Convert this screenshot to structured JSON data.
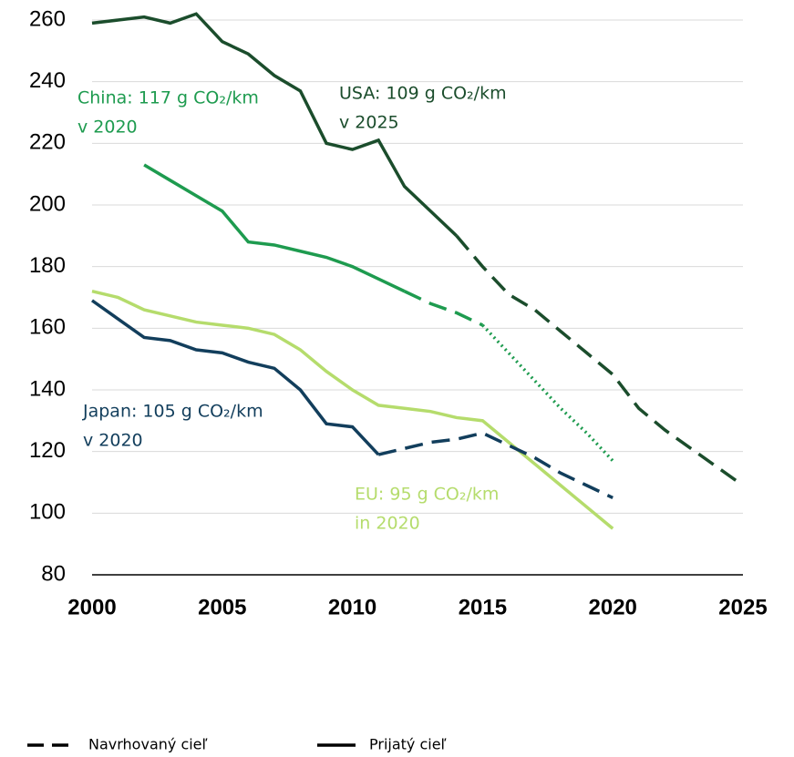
{
  "chart_data": {
    "type": "line",
    "x": [
      2000,
      2001,
      2002,
      2003,
      2004,
      2005,
      2006,
      2007,
      2008,
      2009,
      2010,
      2011,
      2012,
      2013,
      2014,
      2015,
      2016,
      2017,
      2018,
      2019,
      2020,
      2021,
      2022,
      2023,
      2024,
      2025
    ],
    "xlim": [
      2000,
      2025
    ],
    "xticks": [
      2000,
      2005,
      2010,
      2015,
      2020,
      2025
    ],
    "ylim": [
      80,
      260
    ],
    "yticks": [
      80,
      100,
      120,
      140,
      160,
      180,
      200,
      220,
      240,
      260
    ],
    "grid": true,
    "series": [
      {
        "color": "#1b4d2c",
        "line_style": "solid",
        "values": [
          259,
          260,
          261,
          259,
          262,
          253,
          249,
          242,
          237,
          220,
          218,
          221,
          206,
          198,
          190,
          null,
          null,
          null,
          null,
          null,
          null,
          null,
          null,
          null,
          null,
          null
        ]
      },
      {
        "color": "#1b4d2c",
        "line_style": "dashed",
        "values": [
          null,
          null,
          null,
          null,
          null,
          null,
          null,
          null,
          null,
          null,
          null,
          null,
          null,
          null,
          190,
          180,
          171,
          166,
          159,
          152,
          145,
          134,
          127,
          121,
          115,
          109
        ]
      },
      {
        "color": "#1e9b4f",
        "line_style": "solid",
        "values": [
          null,
          null,
          213,
          208,
          203,
          198,
          188,
          187,
          185,
          183,
          180,
          176,
          172,
          null,
          null,
          null,
          null,
          null,
          null,
          null,
          null,
          null,
          null,
          null,
          null,
          null
        ]
      },
      {
        "color": "#1e9b4f",
        "line_style": "dashed",
        "values": [
          null,
          null,
          null,
          null,
          null,
          null,
          null,
          null,
          null,
          null,
          null,
          null,
          172,
          168,
          165,
          161,
          null,
          null,
          null,
          null,
          null,
          null,
          null,
          null,
          null,
          null
        ]
      },
      {
        "color": "#1e9b4f",
        "line_style": "dotted",
        "values": [
          null,
          null,
          null,
          null,
          null,
          null,
          null,
          null,
          null,
          null,
          null,
          null,
          null,
          null,
          null,
          161,
          152,
          143,
          134,
          126,
          117,
          null,
          null,
          null,
          null,
          null
        ]
      },
      {
        "color": "#b5dc6c",
        "line_style": "solid",
        "values": [
          172,
          170,
          166,
          164,
          162,
          161,
          160,
          158,
          153,
          146,
          140,
          135,
          134,
          133,
          131,
          130,
          123,
          116,
          109,
          102,
          95,
          null,
          null,
          null,
          null,
          null
        ]
      },
      {
        "color": "#123e5c",
        "line_style": "solid",
        "values": [
          169,
          163,
          157,
          156,
          153,
          152,
          149,
          147,
          140,
          129,
          128,
          119,
          null,
          null,
          null,
          null,
          null,
          null,
          null,
          null,
          null,
          null,
          null,
          null,
          null,
          null
        ]
      },
      {
        "color": "#123e5c",
        "line_style": "dashed",
        "values": [
          null,
          null,
          null,
          null,
          null,
          null,
          null,
          null,
          null,
          null,
          null,
          119,
          121,
          123,
          124,
          126,
          122,
          118,
          113,
          109,
          105,
          null,
          null,
          null,
          null,
          null
        ]
      }
    ],
    "annotations": [
      {
        "color": "#1e9b4f",
        "lines": [
          "China: 117 g CO₂/km",
          "v 2020"
        ]
      },
      {
        "color": "#1b4d2c",
        "lines": [
          "USA: 109 g CO₂/km",
          "v 2025"
        ]
      },
      {
        "color": "#123e5c",
        "lines": [
          "Japan: 105 g CO₂/km",
          "v 2020"
        ]
      },
      {
        "color": "#b5dc6c",
        "lines": [
          "EU: 95 g CO₂/km",
          "in 2020"
        ]
      }
    ],
    "legend": [
      {
        "label": "Navrhovaný cieľ",
        "line_style": "dashed"
      },
      {
        "label": "Prijatý cieľ",
        "line_style": "solid"
      }
    ]
  }
}
